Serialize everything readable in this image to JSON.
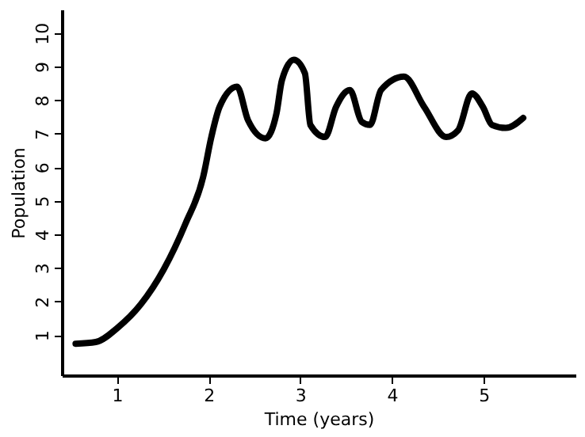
{
  "chart_data": {
    "type": "line",
    "xlabel": "Time (years)",
    "ylabel": "Population",
    "x": [
      0.55,
      0.77,
      1.01,
      1.26,
      1.51,
      1.75,
      1.94,
      2.03,
      2.12,
      2.31,
      2.43,
      2.62,
      2.74,
      2.8,
      2.93,
      3.05,
      3.11,
      3.27,
      3.39,
      3.54,
      3.67,
      3.76,
      3.88,
      4.13,
      4.35,
      4.59,
      4.72,
      4.87,
      4.99,
      5.09,
      5.24,
      5.43
    ],
    "series": [
      {
        "color": "#000000",
        "values": [
          0.74,
          0.79,
          1.22,
          1.91,
          2.95,
          4.33,
          5.7,
          6.9,
          7.8,
          8.4,
          7.4,
          6.86,
          7.6,
          8.6,
          9.2,
          8.8,
          7.26,
          6.9,
          7.8,
          8.3,
          7.35,
          7.26,
          8.3,
          8.7,
          7.8,
          6.9,
          7.1,
          8.2,
          7.8,
          7.26,
          7.17,
          7.47
        ]
      }
    ],
    "xlim": [
      0.4,
      6
    ],
    "ylim": [
      -0.2,
      10.7
    ],
    "xticks": [
      1,
      2,
      3,
      4,
      5
    ],
    "yticks": [
      1,
      2,
      3,
      4,
      5,
      6,
      7,
      8,
      9,
      10
    ],
    "grid": false,
    "marker": "none",
    "line_style": "solid"
  }
}
